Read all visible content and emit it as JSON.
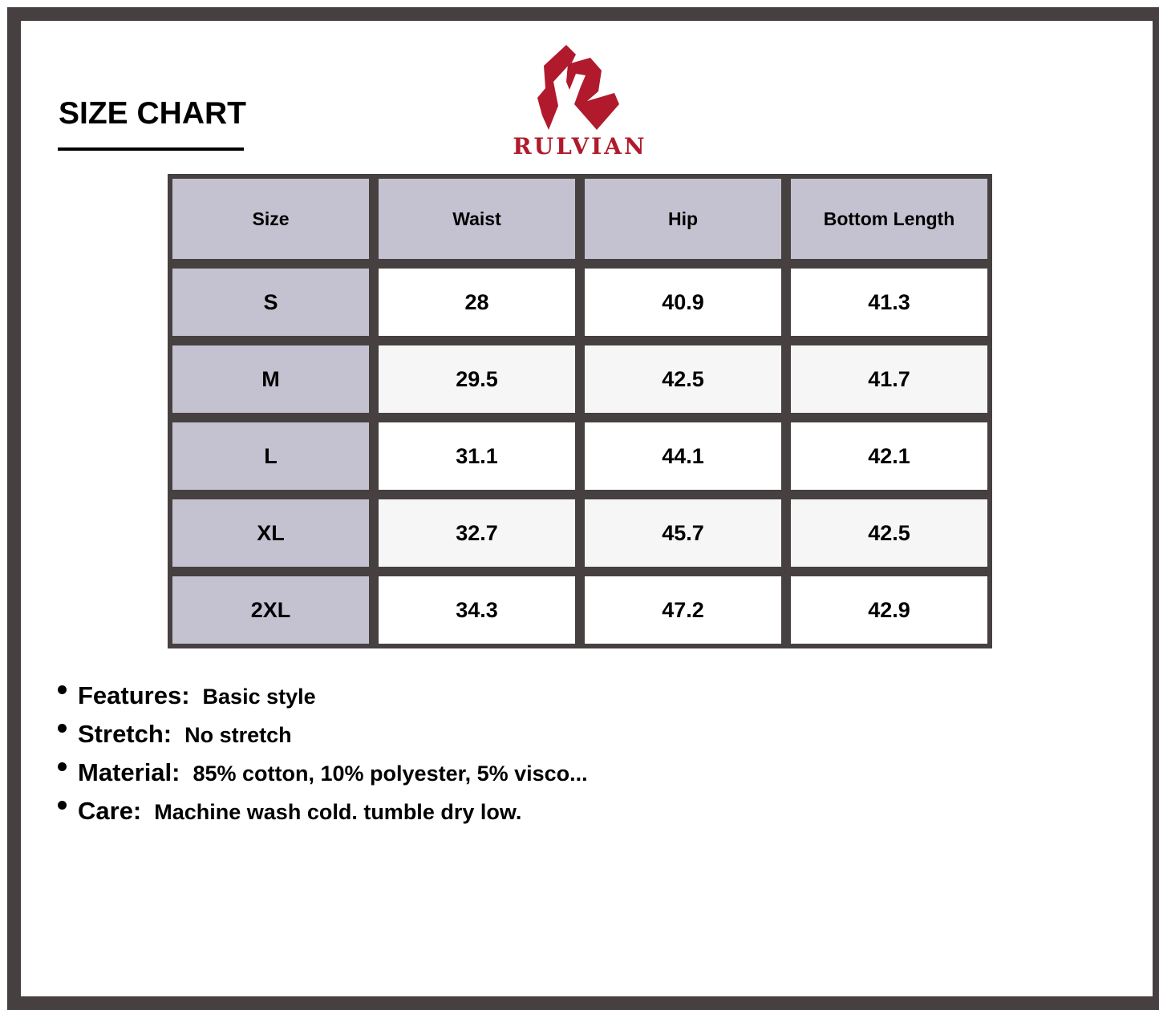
{
  "title": "SIZE CHART",
  "brand": {
    "name": "RULVIAN",
    "color": "#b01a2c"
  },
  "table": {
    "headers": [
      "Size",
      "Waist",
      "Hip",
      "Bottom Length"
    ],
    "rows": [
      [
        "S",
        "28",
        "40.9",
        "41.3"
      ],
      [
        "M",
        "29.5",
        "42.5",
        "41.7"
      ],
      [
        "L",
        "31.1",
        "44.1",
        "42.1"
      ],
      [
        "XL",
        "32.7",
        "45.7",
        "42.5"
      ],
      [
        "2XL",
        "34.3",
        "47.2",
        "42.9"
      ]
    ]
  },
  "specs": [
    {
      "label": "Features:",
      "value": "Basic style"
    },
    {
      "label": "Stretch:",
      "value": "No stretch"
    },
    {
      "label": "Material:",
      "value": "85% cotton, 10% polyester, 5% visco..."
    },
    {
      "label": "Care:",
      "value": "Machine wash cold. tumble dry low."
    }
  ]
}
